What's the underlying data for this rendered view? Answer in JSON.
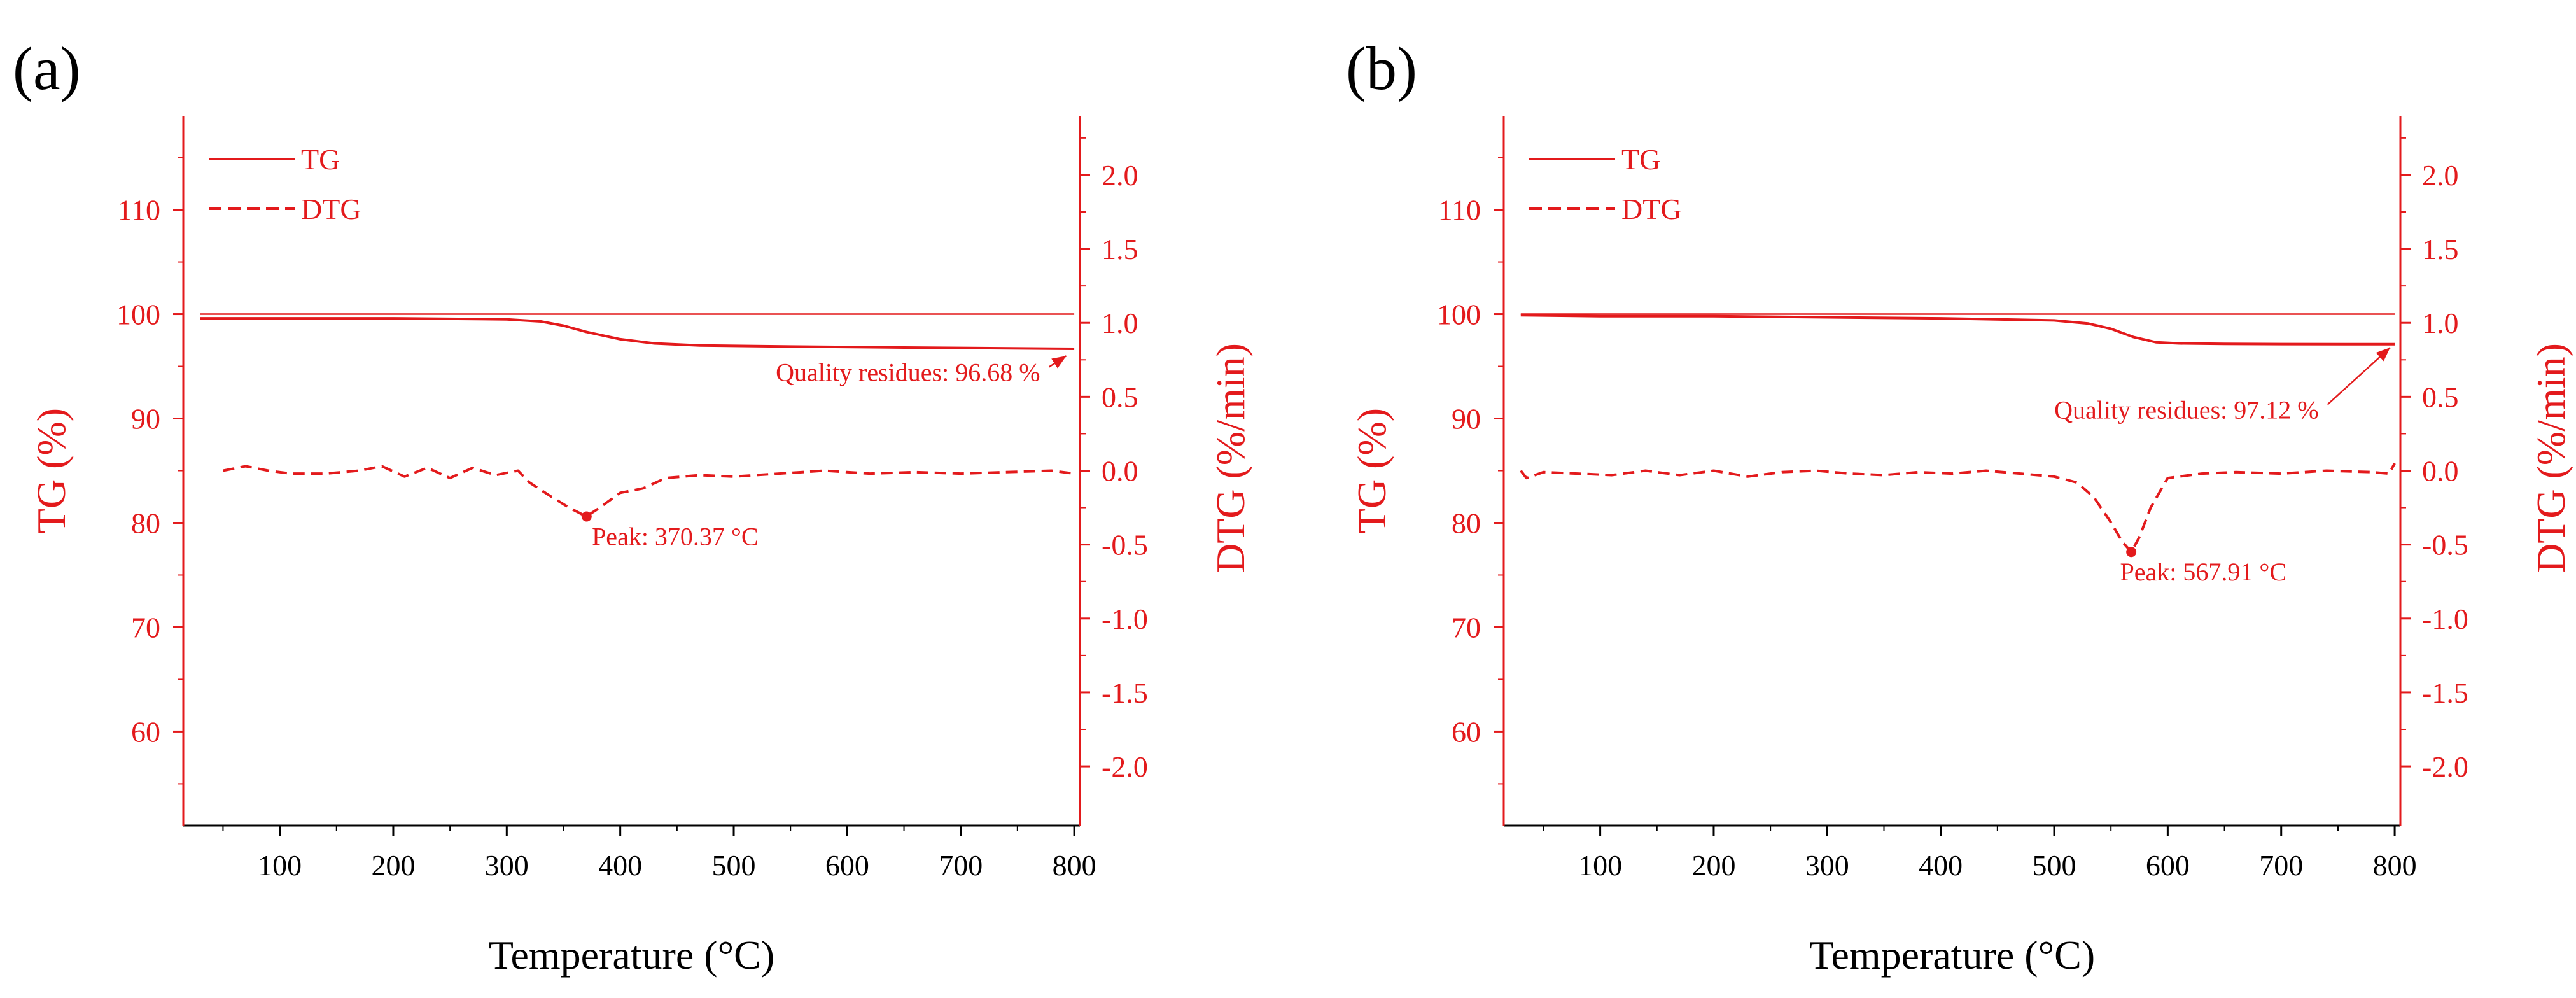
{
  "colors": {
    "series": "#e31a1c",
    "axis_black": "#000000"
  },
  "chart_data": [
    {
      "panel_label": "(a)",
      "type": "line",
      "xlabel": "Temperature (°C)",
      "ylabel_left": "TG (%)",
      "ylabel_right": "DTG (%/min)",
      "xlim": [
        15,
        805
      ],
      "ylim_left": [
        51,
        119
      ],
      "ylim_right": [
        -2.4,
        2.4
      ],
      "xticks": [
        100,
        200,
        300,
        400,
        500,
        600,
        700,
        800
      ],
      "yticks_left": [
        60,
        70,
        80,
        90,
        100,
        110
      ],
      "yticks_right": [
        "2.0",
        "1.5",
        "1.0",
        "0.5",
        "0.0",
        "-0.5",
        "-1.0",
        "-1.5",
        "-2.0"
      ],
      "yticks_right_values": [
        2.0,
        1.5,
        1.0,
        0.5,
        0.0,
        -0.5,
        -1.0,
        -1.5,
        -2.0
      ],
      "legend": [
        "TG",
        "DTG"
      ],
      "series": [
        {
          "name": "TG-ref",
          "style": "thin",
          "x": [
            30,
            800
          ],
          "y": [
            100,
            100
          ]
        },
        {
          "name": "TG",
          "style": "solid",
          "x": [
            30,
            50,
            100,
            200,
            300,
            330,
            350,
            370,
            400,
            430,
            470,
            550,
            650,
            800
          ],
          "y": [
            99.6,
            99.6,
            99.6,
            99.6,
            99.5,
            99.3,
            98.9,
            98.3,
            97.6,
            97.2,
            97.0,
            96.9,
            96.8,
            96.68
          ]
        },
        {
          "name": "DTG",
          "style": "dashed",
          "x": [
            50,
            70,
            90,
            110,
            140,
            170,
            190,
            210,
            230,
            250,
            270,
            290,
            310,
            320,
            340,
            355,
            370,
            380,
            400,
            420,
            440,
            470,
            500,
            540,
            580,
            620,
            660,
            700,
            740,
            780,
            800
          ],
          "y": [
            0.0,
            0.03,
            0.0,
            -0.02,
            -0.02,
            0.0,
            0.03,
            -0.04,
            0.02,
            -0.05,
            0.02,
            -0.03,
            0.0,
            -0.08,
            -0.18,
            -0.25,
            -0.31,
            -0.26,
            -0.15,
            -0.12,
            -0.05,
            -0.03,
            -0.04,
            -0.02,
            0.0,
            -0.02,
            -0.01,
            -0.02,
            -0.01,
            0.0,
            -0.02
          ]
        }
      ],
      "annotations": [
        {
          "text": "Quality residues: 96.68 %",
          "x": 770,
          "y": 93.6,
          "axis": "left",
          "arrow_to": [
            793,
            96.0
          ]
        },
        {
          "text": "Peak: 370.37 °C",
          "x": 375,
          "y_right": -0.34,
          "axis": "right",
          "point": [
            370.37,
            -0.31
          ]
        }
      ]
    },
    {
      "panel_label": "(b)",
      "type": "line",
      "xlabel": "Temperature (°C)",
      "ylabel_left": "TG (%)",
      "ylabel_right": "DTG (%/min)",
      "xlim": [
        15,
        805
      ],
      "ylim_left": [
        51,
        119
      ],
      "ylim_right": [
        -2.4,
        2.4
      ],
      "xticks": [
        100,
        200,
        300,
        400,
        500,
        600,
        700,
        800
      ],
      "yticks_left": [
        60,
        70,
        80,
        90,
        100,
        110
      ],
      "yticks_right": [
        "2.0",
        "1.5",
        "1.0",
        "0.5",
        "0.0",
        "-0.5",
        "-1.0",
        "-1.5",
        "-2.0"
      ],
      "yticks_right_values": [
        2.0,
        1.5,
        1.0,
        0.5,
        0.0,
        -0.5,
        -1.0,
        -1.5,
        -2.0
      ],
      "legend": [
        "TG",
        "DTG"
      ],
      "series": [
        {
          "name": "TG-ref",
          "style": "thin",
          "x": [
            30,
            800
          ],
          "y": [
            100,
            100
          ]
        },
        {
          "name": "TG",
          "style": "solid",
          "x": [
            30,
            100,
            200,
            300,
            400,
            500,
            530,
            550,
            570,
            590,
            610,
            650,
            700,
            800
          ],
          "y": [
            99.9,
            99.8,
            99.8,
            99.7,
            99.6,
            99.4,
            99.1,
            98.6,
            97.8,
            97.3,
            97.2,
            97.15,
            97.13,
            97.12
          ]
        },
        {
          "name": "DTG",
          "style": "dashed",
          "x": [
            30,
            35,
            50,
            80,
            110,
            140,
            170,
            200,
            230,
            260,
            290,
            320,
            350,
            380,
            410,
            440,
            470,
            500,
            520,
            535,
            550,
            560,
            567.91,
            575,
            585,
            600,
            630,
            660,
            700,
            740,
            780,
            795,
            800
          ],
          "y": [
            0.0,
            -0.05,
            -0.01,
            -0.02,
            -0.03,
            0.0,
            -0.03,
            0.0,
            -0.04,
            -0.01,
            0.0,
            -0.02,
            -0.03,
            -0.01,
            -0.02,
            0.0,
            -0.02,
            -0.04,
            -0.08,
            -0.18,
            -0.35,
            -0.48,
            -0.55,
            -0.45,
            -0.25,
            -0.05,
            -0.02,
            -0.01,
            -0.02,
            0.0,
            -0.01,
            -0.02,
            0.05
          ]
        }
      ],
      "annotations": [
        {
          "text": "Quality residues: 97.12 %",
          "x": 733,
          "y": 90.0,
          "axis": "left",
          "arrow_to": [
            796,
            96.8
          ]
        },
        {
          "text": "Peak: 567.91 °C",
          "x": 558,
          "y_right": -0.58,
          "axis": "right",
          "point": [
            567.91,
            -0.55
          ]
        }
      ]
    }
  ]
}
